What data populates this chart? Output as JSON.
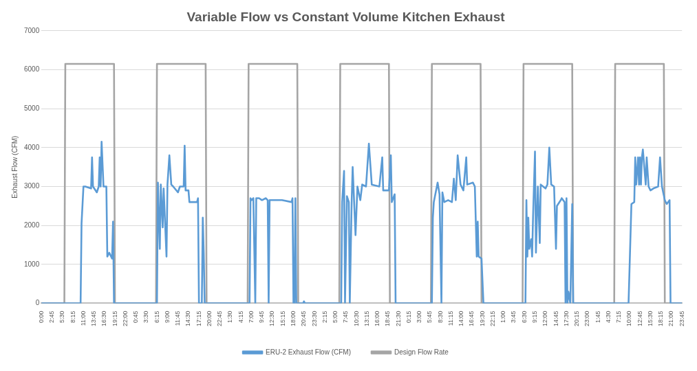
{
  "chart_data": {
    "type": "line",
    "title": "Variable Flow vs Constant Volume Kitchen Exhaust",
    "ylabel": "Exhaust Flow (CFM)",
    "xlim": [
      "--01-06T00:00",
      "--01-12T23:45"
    ],
    "ylim": [
      0,
      7000
    ],
    "yticks": [
      0,
      1000,
      2000,
      3000,
      4000,
      5000,
      6000,
      7000
    ],
    "xticks": [
      {
        "value": "--01-06T00:00",
        "label": "0:00"
      },
      {
        "value": "--01-06T02:45",
        "label": "2:45"
      },
      {
        "value": "--01-06T05:30",
        "label": "5:30"
      },
      {
        "value": "--01-06T08:15",
        "label": "8:15"
      },
      {
        "value": "--01-06T11:00",
        "label": "11:00"
      },
      {
        "value": "--01-06T13:45",
        "label": "13:45"
      },
      {
        "value": "--01-06T16:30",
        "label": "16:30"
      },
      {
        "value": "--01-06T19:15",
        "label": "19:15"
      },
      {
        "value": "--01-06T22:00",
        "label": "22:00"
      },
      {
        "value": "--01-07T00:45",
        "label": "0:45"
      },
      {
        "value": "--01-07T03:30",
        "label": "3:30"
      },
      {
        "value": "--01-07T06:15",
        "label": "6:15"
      },
      {
        "value": "--01-07T09:00",
        "label": "9:00"
      },
      {
        "value": "--01-07T11:45",
        "label": "11:45"
      },
      {
        "value": "--01-07T14:30",
        "label": "14:30"
      },
      {
        "value": "--01-07T17:15",
        "label": "17:15"
      },
      {
        "value": "--01-07T20:00",
        "label": "20:00"
      },
      {
        "value": "--01-07T22:45",
        "label": "22:45"
      },
      {
        "value": "--01-08T01:30",
        "label": "1:30"
      },
      {
        "value": "--01-08T04:15",
        "label": "4:15"
      },
      {
        "value": "--01-08T07:00",
        "label": "7:00"
      },
      {
        "value": "--01-08T09:45",
        "label": "9:45"
      },
      {
        "value": "--01-08T12:30",
        "label": "12:30"
      },
      {
        "value": "--01-08T15:15",
        "label": "15:15"
      },
      {
        "value": "--01-08T18:00",
        "label": "18:00"
      },
      {
        "value": "--01-08T20:45",
        "label": "20:45"
      },
      {
        "value": "--01-08T23:30",
        "label": "23:30"
      },
      {
        "value": "--01-09T02:15",
        "label": "2:15"
      },
      {
        "value": "--01-09T05:00",
        "label": "5:00"
      },
      {
        "value": "--01-09T07:45",
        "label": "7:45"
      },
      {
        "value": "--01-09T10:30",
        "label": "10:30"
      },
      {
        "value": "--01-09T13:15",
        "label": "13:15"
      },
      {
        "value": "--01-09T16:00",
        "label": "16:00"
      },
      {
        "value": "--01-09T18:45",
        "label": "18:45"
      },
      {
        "value": "--01-09T21:30",
        "label": "21:30"
      },
      {
        "value": "--01-10T00:15",
        "label": "0:15"
      },
      {
        "value": "--01-10T03:00",
        "label": "3:00"
      },
      {
        "value": "--01-10T05:45",
        "label": "5:45"
      },
      {
        "value": "--01-10T08:30",
        "label": "8:30"
      },
      {
        "value": "--01-10T11:15",
        "label": "11:15"
      },
      {
        "value": "--01-10T14:00",
        "label": "14:00"
      },
      {
        "value": "--01-10T16:45",
        "label": "16:45"
      },
      {
        "value": "--01-10T19:30",
        "label": "19:30"
      },
      {
        "value": "--01-10T22:15",
        "label": "22:15"
      },
      {
        "value": "--01-11T01:00",
        "label": "1:00"
      },
      {
        "value": "--01-11T03:45",
        "label": "3:45"
      },
      {
        "value": "--01-11T06:30",
        "label": "6:30"
      },
      {
        "value": "--01-11T09:15",
        "label": "9:15"
      },
      {
        "value": "--01-11T12:00",
        "label": "12:00"
      },
      {
        "value": "--01-11T14:45",
        "label": "14:45"
      },
      {
        "value": "--01-11T17:30",
        "label": "17:30"
      },
      {
        "value": "--01-11T20:15",
        "label": "20:15"
      },
      {
        "value": "--01-11T23:00",
        "label": "23:00"
      },
      {
        "value": "--01-12T01:45",
        "label": "1:45"
      },
      {
        "value": "--01-12T04:30",
        "label": "4:30"
      },
      {
        "value": "--01-12T07:15",
        "label": "7:15"
      },
      {
        "value": "--01-12T10:00",
        "label": "10:00"
      },
      {
        "value": "--01-12T12:45",
        "label": "12:45"
      },
      {
        "value": "--01-12T15:30",
        "label": "15:30"
      },
      {
        "value": "--01-12T18:15",
        "label": "18:15"
      },
      {
        "value": "--01-12T21:00",
        "label": "21:00"
      },
      {
        "value": "--01-12T23:45",
        "label": "23:45"
      }
    ],
    "grid": "y",
    "legend": "bottom",
    "series": [
      {
        "name": "ERU-2 Exhaust Flow (CFM)",
        "color": "#5b9bd5",
        "x": [
          "--01-06T00:00",
          "--01-06T10:15",
          "--01-06T10:30",
          "--01-06T11:00",
          "--01-06T11:30",
          "--01-06T13:00",
          "--01-06T13:15",
          "--01-06T13:30",
          "--01-06T14:30",
          "--01-06T15:00",
          "--01-06T15:15",
          "--01-06T15:30",
          "--01-06T15:45",
          "--01-06T16:15",
          "--01-06T17:00",
          "--01-06T17:15",
          "--01-06T17:45",
          "--01-06T18:30",
          "--01-06T18:45",
          "--01-06T19:00",
          "--01-07T06:15",
          "--01-07T06:30",
          "--01-07T07:00",
          "--01-07T07:15",
          "--01-07T07:45",
          "--01-07T08:00",
          "--01-07T08:45",
          "--01-07T09:00",
          "--01-07T09:30",
          "--01-07T10:00",
          "--01-07T10:30",
          "--01-07T11:45",
          "--01-07T12:15",
          "--01-07T13:15",
          "--01-07T13:30",
          "--01-07T13:45",
          "--01-07T14:30",
          "--01-07T14:45",
          "--01-07T16:45",
          "--01-07T17:00",
          "--01-07T17:15",
          "--01-07T18:00",
          "--01-07T18:15",
          "--01-07T18:30",
          "--01-07T18:45",
          "--01-08T06:30",
          "--01-08T06:45",
          "--01-08T07:00",
          "--01-08T07:30",
          "--01-08T08:00",
          "--01-08T08:15",
          "--01-08T09:00",
          "--01-08T09:45",
          "--01-08T10:45",
          "--01-08T11:15",
          "--01-08T11:30",
          "--01-08T11:45",
          "--01-08T12:30",
          "--01-08T15:00",
          "--01-08T17:30",
          "--01-08T17:45",
          "--01-08T18:00",
          "--01-08T18:15",
          "--01-08T18:30",
          "--01-08T18:45",
          "--01-08T20:30",
          "--01-08T20:45",
          "--01-08T21:00",
          "--01-09T06:30",
          "--01-09T06:45",
          "--01-09T07:15",
          "--01-09T07:30",
          "--01-09T08:00",
          "--01-09T08:30",
          "--01-09T08:45",
          "--01-09T09:15",
          "--01-09T09:30",
          "--01-09T10:15",
          "--01-09T10:45",
          "--01-09T11:30",
          "--01-09T12:00",
          "--01-09T13:00",
          "--01-09T13:45",
          "--01-09T14:30",
          "--01-09T16:30",
          "--01-09T17:15",
          "--01-09T17:30",
          "--01-09T19:00",
          "--01-09T19:30",
          "--01-09T19:45",
          "--01-09T20:30",
          "--01-09T20:45",
          "--01-10T06:15",
          "--01-10T06:30",
          "--01-10T06:45",
          "--01-10T07:45",
          "--01-10T08:15",
          "--01-10T08:45",
          "--01-10T09:00",
          "--01-10T09:30",
          "--01-10T10:30",
          "--01-10T11:30",
          "--01-10T12:00",
          "--01-10T12:30",
          "--01-10T13:00",
          "--01-10T13:45",
          "--01-10T14:30",
          "--01-10T15:15",
          "--01-10T15:30",
          "--01-10T17:00",
          "--01-10T17:30",
          "--01-10T17:45",
          "--01-10T18:00",
          "--01-10T18:15",
          "--01-10T18:30",
          "--01-10T19:15",
          "--01-10T19:45",
          "--01-11T06:45",
          "--01-11T07:00",
          "--01-11T07:15",
          "--01-11T07:30",
          "--01-11T07:45",
          "--01-11T08:15",
          "--01-11T08:30",
          "--01-11T08:45",
          "--01-11T09:15",
          "--01-11T09:30",
          "--01-11T10:00",
          "--01-11T10:30",
          "--01-11T10:45",
          "--01-11T12:00",
          "--01-11T12:30",
          "--01-11T13:00",
          "--01-11T13:30",
          "--01-11T14:15",
          "--01-11T14:45",
          "--01-11T15:00",
          "--01-11T16:00",
          "--01-11T16:15",
          "--01-11T17:00",
          "--01-11T17:15",
          "--01-11T17:30",
          "--01-11T17:45",
          "--01-11T18:00",
          "--01-11T18:30",
          "--01-11T19:00",
          "--01-11T19:15",
          "--01-12T09:45",
          "--01-12T10:30",
          "--01-12T11:15",
          "--01-12T11:30",
          "--01-12T11:45",
          "--01-12T12:15",
          "--01-12T12:30",
          "--01-12T12:45",
          "--01-12T13:00",
          "--01-12T13:15",
          "--01-12T13:30",
          "--01-12T14:15",
          "--01-12T14:30",
          "--01-12T15:00",
          "--01-12T15:30",
          "--01-12T16:15",
          "--01-12T17:30",
          "--01-12T18:00",
          "--01-12T18:30",
          "--01-12T19:15",
          "--01-12T19:45",
          "--01-12T20:30",
          "--01-12T20:45",
          "--01-12T23:45"
        ],
        "values": [
          0,
          0,
          2050,
          3000,
          3000,
          2950,
          3750,
          3000,
          2850,
          3000,
          3750,
          3000,
          4150,
          3000,
          3000,
          1200,
          1300,
          1150,
          2100,
          0,
          0,
          3100,
          1400,
          3050,
          1950,
          2950,
          1200,
          3050,
          3800,
          3050,
          3000,
          2850,
          3000,
          3000,
          4050,
          2900,
          2900,
          2600,
          2600,
          2700,
          0,
          0,
          2200,
          1300,
          0,
          0,
          2700,
          2650,
          2700,
          0,
          2700,
          2700,
          2650,
          2700,
          2650,
          0,
          2650,
          2650,
          2650,
          2600,
          2700,
          0,
          0,
          2700,
          0,
          0,
          50,
          0,
          0,
          2600,
          3400,
          0,
          2750,
          2600,
          0,
          2650,
          3500,
          1750,
          3000,
          2650,
          3050,
          3000,
          4100,
          3050,
          3000,
          3750,
          2900,
          2900,
          3800,
          2600,
          2800,
          0,
          0,
          2200,
          2600,
          3100,
          2800,
          0,
          2850,
          2600,
          2650,
          2600,
          3200,
          2650,
          3800,
          3050,
          2900,
          3750,
          3050,
          3100,
          3000,
          2100,
          1200,
          2100,
          1200,
          1150,
          0,
          0,
          2650,
          1200,
          2200,
          1400,
          1650,
          1200,
          2250,
          3900,
          1300,
          3000,
          1550,
          3050,
          2950,
          3050,
          4000,
          3050,
          3000,
          1400,
          2500,
          2650,
          2700,
          2600,
          0,
          2700,
          0,
          300,
          0,
          2550,
          0,
          0,
          2550,
          2600,
          3750,
          3050,
          3750,
          3050,
          3750,
          3050,
          3750,
          3950,
          3050,
          3750,
          3000,
          2900,
          2950,
          3000,
          3750,
          3000,
          2650,
          2550,
          2650,
          0,
          0
        ]
      },
      {
        "name": "Design Flow Rate",
        "color": "#a5a5a5",
        "x": [
          "--01-06T00:00",
          "--01-06T06:00",
          "--01-06T06:15",
          "--01-06T19:00",
          "--01-06T19:15",
          "--01-07T06:00",
          "--01-07T06:15",
          "--01-07T19:00",
          "--01-07T19:15",
          "--01-08T06:00",
          "--01-08T06:15",
          "--01-08T19:00",
          "--01-08T19:15",
          "--01-09T06:00",
          "--01-09T06:15",
          "--01-09T19:00",
          "--01-09T19:15",
          "--01-10T06:00",
          "--01-10T06:15",
          "--01-10T19:00",
          "--01-10T19:15",
          "--01-11T06:00",
          "--01-11T06:15",
          "--01-11T19:00",
          "--01-11T19:15",
          "--01-12T06:00",
          "--01-12T06:15",
          "--01-12T19:00",
          "--01-12T19:15",
          "--01-12T23:45"
        ],
        "values": [
          0,
          0,
          6150,
          6150,
          0,
          0,
          6150,
          6150,
          0,
          0,
          6150,
          6150,
          0,
          0,
          6150,
          6150,
          0,
          0,
          6150,
          6150,
          0,
          0,
          6150,
          6150,
          0,
          0,
          6150,
          6150,
          0,
          0
        ]
      }
    ]
  }
}
